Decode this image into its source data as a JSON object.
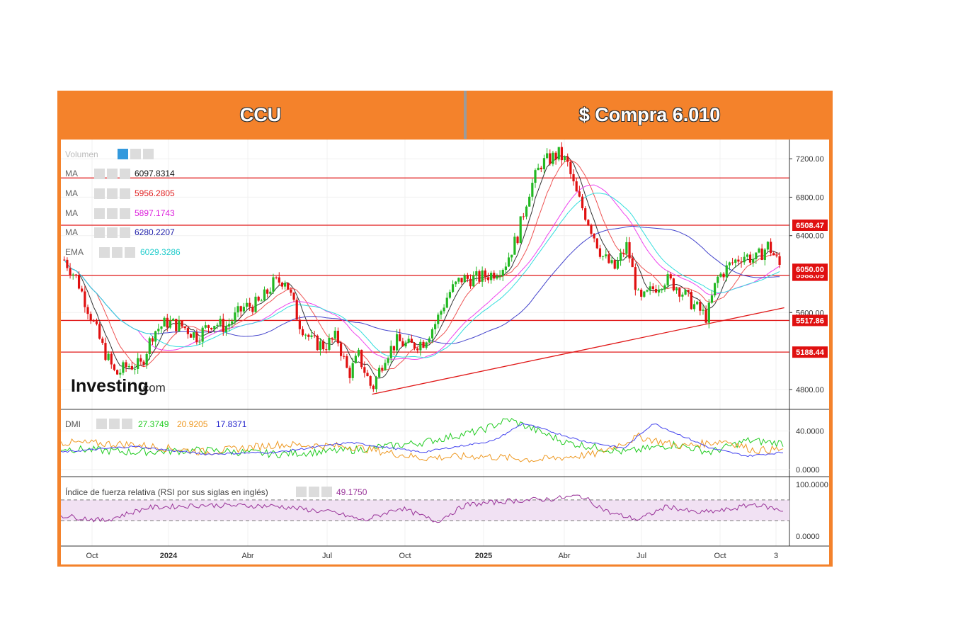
{
  "header": {
    "ticker": "CCU",
    "price_text": "$ Compra 6.010"
  },
  "colors": {
    "frame": "#f4822b",
    "up": "#22b822",
    "down": "#e01010",
    "level": "#e01818",
    "ma1": "#333333",
    "ma2": "#ee5555",
    "ma3": "#ee44ee",
    "ma4": "#4444cc",
    "ema": "#33dddd",
    "dmi_plus": "#22cc22",
    "dmi_minus": "#ee9922",
    "adx": "#4444ee",
    "rsi": "#993399",
    "rsi_band": "#f1e1f3"
  },
  "watermark": {
    "brand": "Investing",
    "suffix": ".com"
  },
  "indicators": {
    "volume_label": "Volumen",
    "ma": [
      {
        "label": "MA",
        "value": "6097.8314",
        "color": "#111111"
      },
      {
        "label": "MA",
        "value": "5956.2805",
        "color": "#e02020"
      },
      {
        "label": "MA",
        "value": "5897.1743",
        "color": "#dd22dd"
      },
      {
        "label": "MA",
        "value": "6280.2207",
        "color": "#2222aa"
      },
      {
        "label": "EMA",
        "value": "6029.3286",
        "color": "#22cccc"
      }
    ],
    "dmi": {
      "label": "DMI",
      "values": [
        "27.3749",
        "20.9205",
        "17.8371"
      ]
    },
    "rsi": {
      "label": "Índice de fuerza relativa (RSI por sus siglas en inglés)",
      "value": "49.1750"
    }
  },
  "chart_data": {
    "type": "candlestick",
    "x_labels": [
      "Oct",
      "2024",
      "Abr",
      "Jul",
      "Oct",
      "2025",
      "Abr",
      "Jul",
      "Oct",
      "3"
    ],
    "price_axis": {
      "ticks": [
        "7200.00",
        "6800.00",
        "6400.00",
        "5600.00",
        "4800.00"
      ],
      "range": [
        4600,
        7400
      ]
    },
    "levels": [
      {
        "value": 7000,
        "label": ""
      },
      {
        "value": 6508.47,
        "label": "6508.47"
      },
      {
        "value": 5988.09,
        "label": "5988.09"
      },
      {
        "value": 5517.86,
        "label": "5517.86"
      },
      {
        "value": 5188.44,
        "label": "5188.44"
      }
    ],
    "last_price": {
      "value": 6050,
      "label": "6050.00"
    },
    "trendline": {
      "from": {
        "x": "2024-09-05",
        "y": 4750
      },
      "to": {
        "x": "2026-01-08",
        "y": 5650
      }
    },
    "close_path": [
      [
        "2023-09-05",
        6150
      ],
      [
        "2023-09-20",
        5950
      ],
      [
        "2023-10-05",
        5600
      ],
      [
        "2023-10-20",
        5250
      ],
      [
        "2023-11-05",
        4950
      ],
      [
        "2023-11-20",
        5050
      ],
      [
        "2023-12-05",
        5050
      ],
      [
        "2023-12-20",
        5400
      ],
      [
        "2024-01-05",
        5500
      ],
      [
        "2024-01-25",
        5450
      ],
      [
        "2024-02-10",
        5350
      ],
      [
        "2024-02-28",
        5500
      ],
      [
        "2024-03-15",
        5450
      ],
      [
        "2024-04-05",
        5650
      ],
      [
        "2024-04-25",
        5700
      ],
      [
        "2024-05-10",
        5900
      ],
      [
        "2024-05-25",
        5950
      ],
      [
        "2024-06-10",
        5500
      ],
      [
        "2024-06-25",
        5300
      ],
      [
        "2024-07-10",
        5250
      ],
      [
        "2024-07-25",
        5350
      ],
      [
        "2024-08-08",
        4950
      ],
      [
        "2024-08-20",
        5150
      ],
      [
        "2024-09-05",
        4800
      ],
      [
        "2024-09-20",
        5150
      ],
      [
        "2024-10-05",
        5300
      ],
      [
        "2024-10-20",
        5250
      ],
      [
        "2024-11-05",
        5300
      ],
      [
        "2024-11-20",
        5500
      ],
      [
        "2024-12-05",
        5800
      ],
      [
        "2024-12-20",
        5950
      ],
      [
        "2025-01-05",
        5950
      ],
      [
        "2025-01-25",
        6000
      ],
      [
        "2025-02-10",
        6100
      ],
      [
        "2025-02-25",
        6400
      ],
      [
        "2025-03-10",
        6850
      ],
      [
        "2025-03-25",
        7150
      ],
      [
        "2025-04-05",
        7200
      ],
      [
        "2025-04-15",
        7250
      ],
      [
        "2025-04-25",
        7150
      ],
      [
        "2025-05-05",
        6850
      ],
      [
        "2025-05-20",
        6550
      ],
      [
        "2025-06-05",
        6200
      ],
      [
        "2025-06-20",
        6050
      ],
      [
        "2025-07-05",
        6300
      ],
      [
        "2025-07-20",
        5700
      ],
      [
        "2025-08-05",
        5850
      ],
      [
        "2025-08-20",
        5950
      ],
      [
        "2025-09-05",
        5850
      ],
      [
        "2025-09-20",
        5700
      ],
      [
        "2025-10-08",
        5550
      ],
      [
        "2025-10-20",
        5950
      ],
      [
        "2025-11-05",
        6100
      ],
      [
        "2025-11-20",
        6200
      ],
      [
        "2025-12-05",
        6150
      ],
      [
        "2025-12-20",
        6300
      ],
      [
        "2026-01-05",
        6050
      ]
    ],
    "dmi_axis": {
      "ticks": [
        "40.0000",
        "0.0000"
      ],
      "range": [
        0,
        55
      ]
    },
    "dmi_plus": [
      [
        0,
        22
      ],
      [
        0.1,
        18
      ],
      [
        0.2,
        20
      ],
      [
        0.3,
        16
      ],
      [
        0.4,
        20
      ],
      [
        0.5,
        28
      ],
      [
        0.58,
        40
      ],
      [
        0.62,
        52
      ],
      [
        0.7,
        28
      ],
      [
        0.78,
        18
      ],
      [
        0.85,
        26
      ],
      [
        0.9,
        18
      ],
      [
        0.95,
        30
      ],
      [
        1,
        27.37
      ]
    ],
    "dmi_minus": [
      [
        0,
        28
      ],
      [
        0.1,
        26
      ],
      [
        0.2,
        18
      ],
      [
        0.3,
        26
      ],
      [
        0.4,
        24
      ],
      [
        0.5,
        12
      ],
      [
        0.58,
        14
      ],
      [
        0.66,
        10
      ],
      [
        0.74,
        16
      ],
      [
        0.8,
        34
      ],
      [
        0.86,
        24
      ],
      [
        0.92,
        30
      ],
      [
        0.96,
        20
      ],
      [
        1,
        20.92
      ]
    ],
    "adx": [
      [
        0,
        18
      ],
      [
        0.1,
        24
      ],
      [
        0.2,
        16
      ],
      [
        0.3,
        18
      ],
      [
        0.4,
        28
      ],
      [
        0.5,
        18
      ],
      [
        0.6,
        30
      ],
      [
        0.64,
        48
      ],
      [
        0.72,
        30
      ],
      [
        0.78,
        22
      ],
      [
        0.82,
        48
      ],
      [
        0.9,
        22
      ],
      [
        0.95,
        14
      ],
      [
        1,
        17.84
      ]
    ],
    "rsi_axis": {
      "ticks": [
        "100.0000",
        "0.0000"
      ],
      "range": [
        0,
        100
      ],
      "band": [
        30,
        70
      ]
    },
    "rsi": [
      [
        0,
        40
      ],
      [
        0.06,
        30
      ],
      [
        0.12,
        55
      ],
      [
        0.2,
        60
      ],
      [
        0.3,
        58
      ],
      [
        0.38,
        45
      ],
      [
        0.42,
        30
      ],
      [
        0.47,
        55
      ],
      [
        0.52,
        28
      ],
      [
        0.56,
        60
      ],
      [
        0.62,
        68
      ],
      [
        0.68,
        72
      ],
      [
        0.72,
        78
      ],
      [
        0.76,
        45
      ],
      [
        0.8,
        32
      ],
      [
        0.84,
        58
      ],
      [
        0.88,
        45
      ],
      [
        0.92,
        50
      ],
      [
        0.96,
        62
      ],
      [
        1,
        49.175
      ]
    ]
  }
}
